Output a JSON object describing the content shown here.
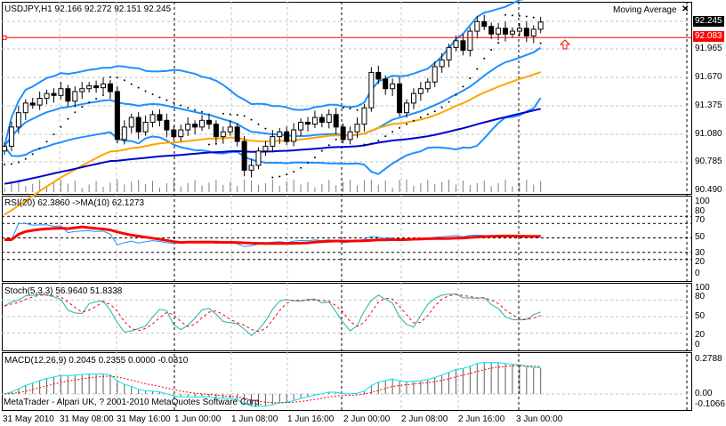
{
  "header": {
    "symbol_info": "USDJPY,H1  92.166 92.272 92.151 92.245",
    "indicator_name": "Moving Average",
    "close_icon": "close-x-icon"
  },
  "price_axis": [
    "92.245",
    "91.965",
    "91.670",
    "91.375",
    "91.080",
    "90.785",
    "90.490"
  ],
  "current_price_label": "92.245",
  "hline_label": "92.083",
  "rsi": {
    "title": "RSI(20) 62.3860  ->MA(10) 62.1273",
    "axis": [
      "100",
      "80",
      "70",
      "50",
      "30",
      "20",
      "0"
    ]
  },
  "stoch": {
    "title": "Stoch(5,3,3) 56.9640 51.8338",
    "axis": [
      "100",
      "80",
      "50",
      "20",
      "0"
    ]
  },
  "macd": {
    "title": "MACD(12,26,9) 0.2045 0.2355 0.0000 -0.0310",
    "axis": [
      "0.2788",
      "0.00",
      "-0.1066"
    ]
  },
  "footer": "MetaTrader - Alpari UK, ? 2001-2010 MetaQuotes Software Corp.",
  "time_axis": [
    "31 May 2010",
    "31 May 08:00",
    "31 May 16:00",
    "1 Jun 00:00",
    "1 Jun 08:00",
    "1 Jun 16:00",
    "2 Jun 00:00",
    "2 Jun 08:00",
    "2 Jun 16:00",
    "3 Jun 00:00"
  ],
  "colors": {
    "band": "#1e90ff",
    "ma_orange": "#ffa500",
    "ma_dark": "#0000cd",
    "rsi": "#1e90ff",
    "rsi_ma": "#ff0000",
    "stoch_main": "#20b2aa",
    "stoch_signal": "#ff0000",
    "macd_main": "#00e5ee",
    "macd_signal": "#ff0000",
    "hline": "#ff0000"
  },
  "chart_data": {
    "type": "candlestick",
    "symbol": "USDJPY",
    "timeframe": "H1",
    "ylim": [
      90.49,
      92.245
    ],
    "hline": 92.083,
    "closes": [
      90.95,
      91.15,
      91.3,
      91.4,
      91.38,
      91.45,
      91.5,
      91.48,
      91.55,
      91.42,
      91.52,
      91.55,
      91.58,
      91.56,
      91.6,
      91.52,
      91.02,
      91.15,
      91.25,
      91.1,
      91.2,
      91.28,
      91.22,
      91.12,
      91.05,
      91.12,
      91.18,
      91.15,
      91.22,
      91.18,
      91.05,
      91.1,
      91.15,
      91.0,
      90.7,
      90.75,
      90.9,
      90.95,
      91.05,
      91.1,
      91.0,
      91.12,
      91.2,
      91.18,
      91.25,
      91.2,
      91.28,
      91.15,
      91.02,
      91.1,
      91.18,
      91.35,
      91.72,
      91.65,
      91.55,
      91.6,
      91.3,
      91.4,
      91.5,
      91.55,
      91.62,
      91.78,
      91.85,
      91.98,
      92.05,
      91.95,
      92.15,
      92.25,
      92.2,
      92.12,
      92.18,
      92.12,
      92.15,
      92.18,
      92.1,
      92.17,
      92.245
    ],
    "indicators": {
      "bands_period": 20,
      "bands_dev": 2,
      "ma_orange_period": 40,
      "ma_orange_seed": 90.2,
      "ma_dark_period": 100,
      "ma_dark_seed": 90.55,
      "rsi_period": 20,
      "rsi_ma": 10,
      "stoch": [
        5,
        3,
        3
      ],
      "macd": [
        12,
        26,
        9
      ]
    }
  }
}
